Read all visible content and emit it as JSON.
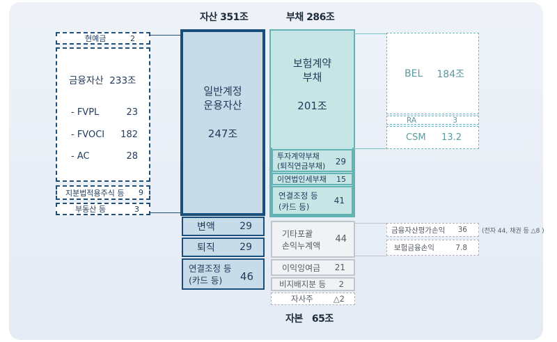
{
  "headers": {
    "assets": "자산 351조",
    "liabilities": "부채 286조",
    "equity": "자본   65조"
  },
  "left_detail": {
    "cash": {
      "label": "현예금",
      "value": "2"
    },
    "financial": {
      "title": "금융자산  233조",
      "items": [
        {
          "label": "- FVPL",
          "value": "23"
        },
        {
          "label": "- FVOCI",
          "value": "182"
        },
        {
          "label": "- AC",
          "value": "28"
        }
      ]
    },
    "equity_method": {
      "label": "지분법적용주식 등",
      "value": "9"
    },
    "real_estate": {
      "label": "부동산 등",
      "value": "3"
    }
  },
  "assets": {
    "general": {
      "line1": "일반계정",
      "line2": "운용자산",
      "value": "247조"
    },
    "variable": {
      "label": "변액",
      "value": "29"
    },
    "retirement": {
      "label": "퇴직",
      "value": "29"
    },
    "consolidation": {
      "line1": "연결조정 등",
      "line2": "(카드 등)",
      "value": "46"
    }
  },
  "liabilities": {
    "insurance": {
      "line1": "보험계약",
      "line2": "부채",
      "value": "201조"
    },
    "investment": {
      "line1": "투자계약부채",
      "line2": "(퇴직연금부채)",
      "value": "29"
    },
    "deferred_tax": {
      "label": "이연법인세부채",
      "value": "15"
    },
    "consolidation": {
      "line1": "연결조정 등",
      "line2": "(카드 등)",
      "value": "41"
    }
  },
  "right_detail": {
    "bel": {
      "label": "BEL",
      "value": "184조"
    },
    "ra": {
      "label": "RA",
      "value": "3"
    },
    "csm": {
      "label": "CSM",
      "value": "13.2"
    }
  },
  "equity": {
    "aoci": {
      "line1": "기타포괄",
      "line2": "손익누계액",
      "value": "44"
    },
    "retained": {
      "label": "이익잉여금",
      "value": "21"
    },
    "minority": {
      "label": "비지배지분 등",
      "value": "2"
    },
    "treasury": {
      "label": "자사주",
      "value": "△2"
    }
  },
  "equity_detail": {
    "valuation": {
      "label": "금융자산평가손익",
      "value": "36"
    },
    "note": "(전자 44, 채권 등 △8 )",
    "insurance_finance": {
      "label": "보험금융손익",
      "value": "7.8"
    }
  }
}
